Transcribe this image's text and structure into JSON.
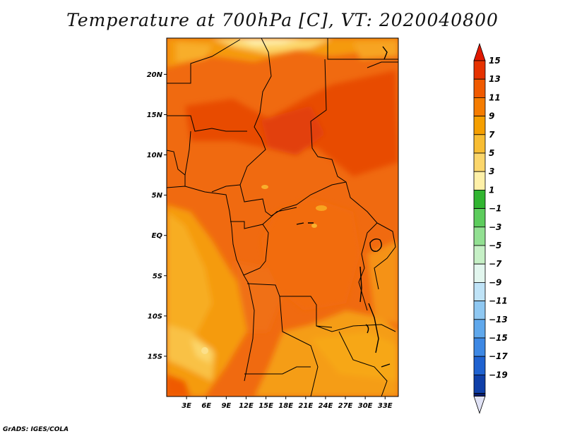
{
  "title": "Temperature at 700hPa [C], VT: 2020040800",
  "credit": "GrADS: IGES/COLA",
  "map": {
    "lat_ticks": [
      "20N",
      "15N",
      "10N",
      "5N",
      "EQ",
      "5S",
      "10S",
      "15S"
    ],
    "lon_ticks": [
      "3E",
      "6E",
      "9E",
      "12E",
      "15E",
      "18E",
      "21E",
      "24E",
      "27E",
      "30E",
      "33E"
    ],
    "lat_values": [
      20,
      15,
      10,
      5,
      0,
      -5,
      -10,
      -15
    ],
    "lon_values": [
      3,
      6,
      9,
      12,
      15,
      18,
      21,
      24,
      27,
      30,
      33
    ],
    "lat_range": [
      -20,
      24.5
    ],
    "lon_range": [
      0,
      35
    ],
    "dominant_field_color": "#f06a10"
  },
  "colorbar": {
    "labels": [
      "15",
      "13",
      "11",
      "9",
      "7",
      "5",
      "3",
      "1",
      "−1",
      "−3",
      "−5",
      "−7",
      "−9",
      "−11",
      "−13",
      "−15",
      "−17",
      "−19"
    ],
    "colors": [
      "#e63200",
      "#f05a00",
      "#f57c00",
      "#f59f00",
      "#f8bd33",
      "#fbd66b",
      "#fef0a8",
      "#31b531",
      "#5ccc5c",
      "#92e092",
      "#c6f0c6",
      "#e2f6ee",
      "#bfe3f7",
      "#8fc8f2",
      "#5fa8ec",
      "#3d88e4",
      "#1f62d0",
      "#0f3fa8",
      "#081d6e"
    ],
    "top_arrow_color": "#e01800",
    "bottom_arrow_color": "#e0e2f5"
  }
}
